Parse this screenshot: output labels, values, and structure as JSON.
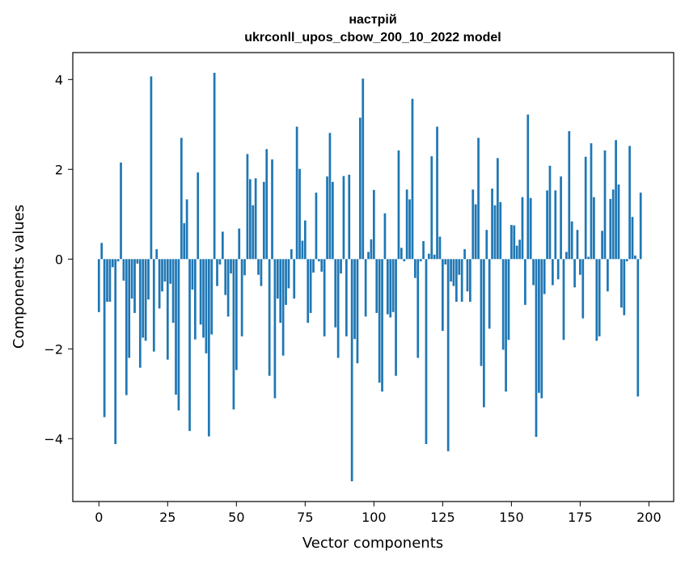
{
  "chart_data": {
    "type": "bar",
    "title": "настрій",
    "subtitle": "ukrconll_upos_cbow_200_10_2022 model",
    "xlabel": "Vector components",
    "ylabel": "Components values",
    "xlim": [
      -9.5,
      209
    ],
    "ylim": [
      -5.4,
      4.6
    ],
    "xticks": [
      0,
      25,
      50,
      75,
      100,
      125,
      150,
      175,
      200
    ],
    "xtick_labels": [
      "0",
      "25",
      "50",
      "75",
      "100",
      "125",
      "150",
      "175",
      "200"
    ],
    "yticks": [
      -4,
      -2,
      0,
      2,
      4
    ],
    "ytick_labels": [
      "−4",
      "−2",
      "0",
      "2",
      "4"
    ],
    "bar_color": "#1f77b4",
    "grid": false,
    "values": [
      -1.18,
      0.36,
      -3.52,
      -0.95,
      -0.95,
      -0.18,
      -4.12,
      -0.05,
      2.15,
      -0.48,
      -3.03,
      -2.2,
      -0.88,
      -1.2,
      -0.1,
      -2.42,
      -1.75,
      -1.82,
      -0.9,
      4.07,
      -2.06,
      0.22,
      -1.1,
      -0.72,
      -0.5,
      -2.24,
      -0.55,
      -1.42,
      -3.02,
      -3.37,
      2.7,
      0.8,
      1.33,
      -3.83,
      -0.68,
      -1.79,
      1.93,
      -1.46,
      -1.75,
      -2.1,
      -3.95,
      -1.68,
      4.15,
      -0.6,
      -0.12,
      0.61,
      -0.8,
      -1.28,
      -0.32,
      -3.35,
      -2.47,
      0.68,
      -1.72,
      -0.36,
      2.34,
      1.78,
      1.2,
      1.8,
      -0.35,
      -0.6,
      1.72,
      2.45,
      -2.6,
      2.22,
      -3.1,
      -0.88,
      -1.42,
      -2.15,
      -1.02,
      -0.65,
      0.22,
      -0.88,
      2.95,
      2.01,
      0.41,
      0.86,
      -1.42,
      -1.2,
      -0.3,
      1.48,
      -0.05,
      -0.28,
      -1.72,
      1.84,
      2.81,
      1.72,
      -1.52,
      -2.2,
      -0.32,
      1.85,
      -1.72,
      1.88,
      -4.95,
      -1.78,
      -2.32,
      3.15,
      4.02,
      -1.28,
      0.16,
      0.44,
      1.54,
      -1.2,
      -2.75,
      -2.95,
      1.02,
      -1.23,
      -1.3,
      -1.18,
      -2.6,
      2.42,
      0.25,
      -0.05,
      1.55,
      1.33,
      3.57,
      -0.42,
      -2.2,
      -0.05,
      0.4,
      -4.12,
      0.12,
      2.29,
      0.1,
      2.95,
      0.5,
      -1.6,
      -0.12,
      -4.28,
      -0.5,
      -0.6,
      -0.95,
      -0.35,
      -0.95,
      0.22,
      -0.72,
      -0.95,
      1.55,
      1.22,
      2.7,
      -2.38,
      -3.3,
      0.65,
      -1.55,
      1.57,
      1.2,
      2.25,
      1.27,
      -2.02,
      -2.95,
      -1.8,
      0.76,
      0.75,
      0.3,
      0.43,
      1.38,
      -1.02,
      3.22,
      1.36,
      -0.58,
      -3.96,
      -2.98,
      -3.1,
      -0.78,
      1.53,
      2.08,
      -0.58,
      1.53,
      -0.45,
      1.84,
      -1.8,
      0.16,
      2.85,
      0.84,
      -0.63,
      0.65,
      -0.35,
      -1.32,
      2.28,
      0.05,
      2.58,
      1.38,
      -1.82,
      -1.72,
      0.63,
      2.42,
      -0.72,
      1.34,
      1.55,
      2.65,
      1.66,
      -1.08,
      -1.25,
      -0.05,
      2.52,
      0.94,
      0.08,
      -3.06,
      1.48
    ]
  }
}
